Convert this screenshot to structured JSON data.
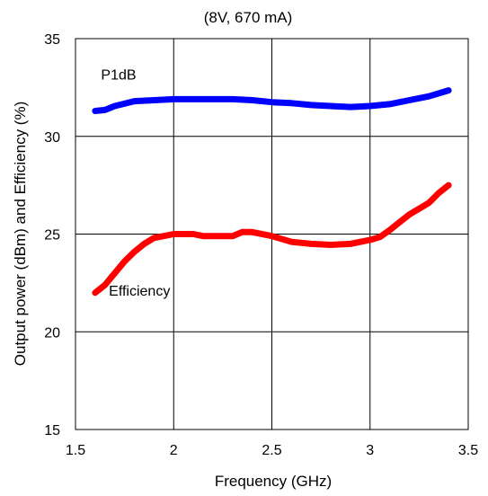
{
  "chart_data": {
    "type": "line",
    "title": "(8V, 670 mA)",
    "xlabel": "Frequency (GHz)",
    "ylabel": "Output power (dBm) and Efficiency (%)",
    "xlim": [
      1.5,
      3.5
    ],
    "ylim": [
      15,
      35
    ],
    "xticks": [
      1.5,
      2,
      2.5,
      3,
      3.5
    ],
    "xtick_labels": [
      "1.5",
      "2",
      "2.5",
      "3",
      "3.5"
    ],
    "yticks": [
      15,
      20,
      25,
      30,
      35
    ],
    "ytick_labels": [
      "15",
      "20",
      "25",
      "30",
      "35"
    ],
    "grid": true,
    "legend": "none",
    "series": [
      {
        "name": "P1dB",
        "color": "#0000ff",
        "x": [
          1.6,
          1.65,
          1.7,
          1.8,
          1.9,
          2.0,
          2.1,
          2.2,
          2.3,
          2.4,
          2.5,
          2.6,
          2.7,
          2.8,
          2.9,
          3.0,
          3.1,
          3.2,
          3.3,
          3.4
        ],
        "y": [
          31.3,
          31.35,
          31.55,
          31.8,
          31.85,
          31.9,
          31.9,
          31.9,
          31.9,
          31.85,
          31.75,
          31.7,
          31.6,
          31.55,
          31.5,
          31.55,
          31.65,
          31.85,
          32.05,
          32.35
        ]
      },
      {
        "name": "Efficiency",
        "color": "#ff0000",
        "x": [
          1.6,
          1.65,
          1.7,
          1.75,
          1.8,
          1.85,
          1.9,
          1.95,
          2.0,
          2.05,
          2.1,
          2.15,
          2.2,
          2.3,
          2.35,
          2.4,
          2.5,
          2.6,
          2.7,
          2.8,
          2.9,
          2.95,
          3.0,
          3.05,
          3.1,
          3.15,
          3.2,
          3.3,
          3.35,
          3.4
        ],
        "y": [
          22.0,
          22.4,
          23.0,
          23.6,
          24.1,
          24.5,
          24.8,
          24.9,
          25.0,
          25.0,
          25.0,
          24.9,
          24.9,
          24.9,
          25.1,
          25.1,
          24.9,
          24.6,
          24.5,
          24.45,
          24.5,
          24.6,
          24.7,
          24.85,
          25.2,
          25.6,
          26.0,
          26.6,
          27.1,
          27.5
        ]
      }
    ],
    "annotations": [
      {
        "text": "P1dB",
        "series": "P1dB",
        "x": 1.63,
        "y": 32.9
      },
      {
        "text": "Efficiency",
        "series": "Efficiency",
        "x": 1.67,
        "y": 21.85
      }
    ]
  }
}
